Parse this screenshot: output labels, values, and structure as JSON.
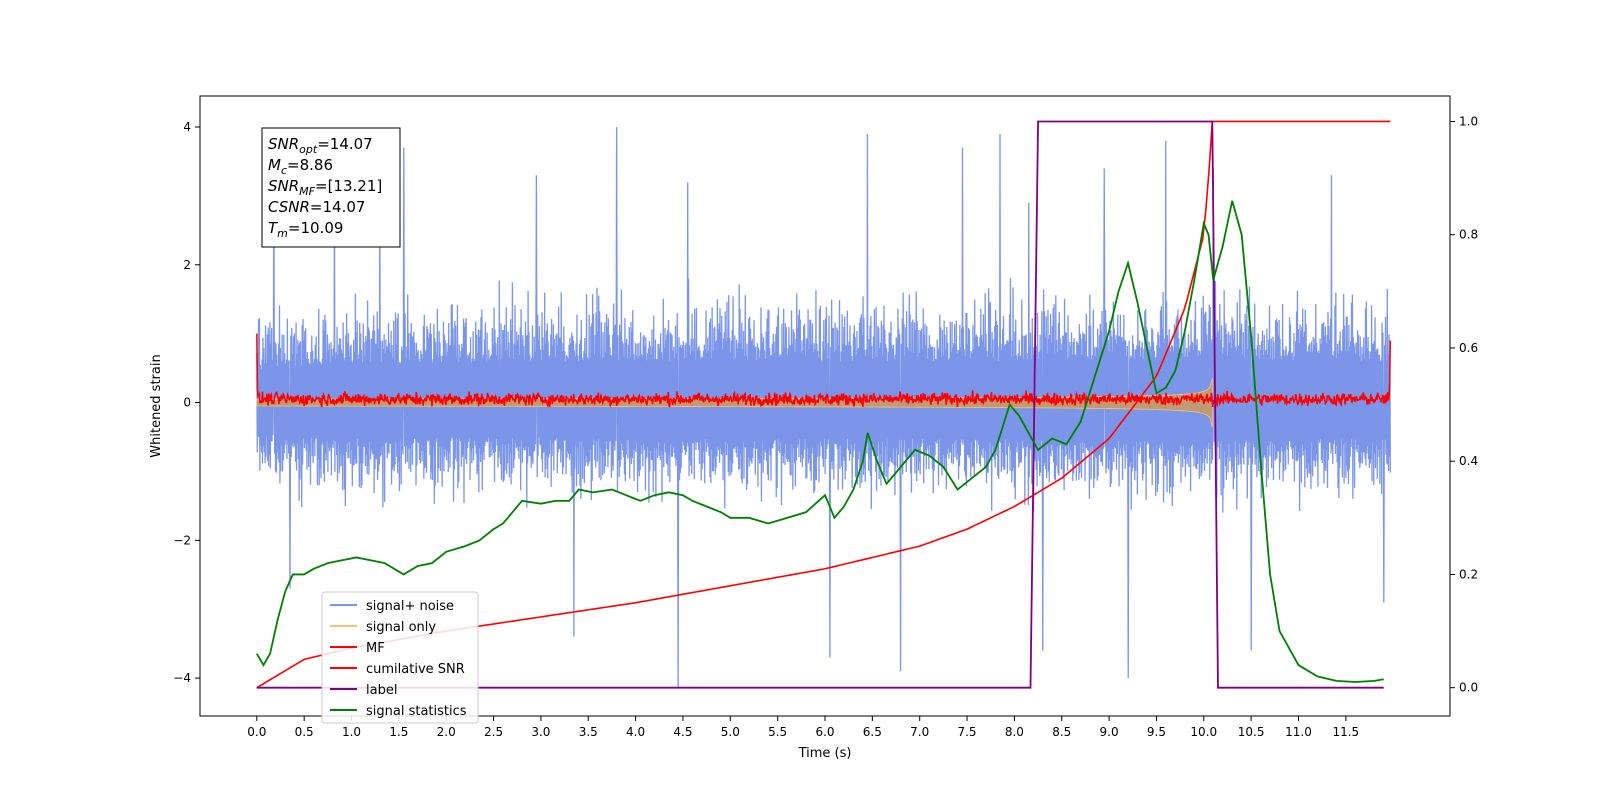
{
  "chart_data": {
    "type": "line",
    "title": "",
    "xlabel": "Time (s)",
    "ylabel": "Whitened strain",
    "xlim": [
      -0.6,
      12.6
    ],
    "ylim": [
      -4.55,
      4.45
    ],
    "y2lim": [
      -0.05,
      1.045
    ],
    "xticks": [
      0.0,
      0.5,
      1.0,
      1.5,
      2.0,
      2.5,
      3.0,
      3.5,
      4.0,
      4.5,
      5.0,
      5.5,
      6.0,
      6.5,
      7.0,
      7.5,
      8.0,
      8.5,
      9.0,
      9.5,
      10.0,
      10.5,
      11.0,
      11.5
    ],
    "xtick_labels": [
      "0.0",
      "0.5",
      "1.0",
      "1.5",
      "2.0",
      "2.5",
      "3.0",
      "3.5",
      "4.0",
      "4.5",
      "5.0",
      "5.5",
      "6.0",
      "6.5",
      "7.0",
      "7.5",
      "8.0",
      "8.5",
      "9.0",
      "9.5",
      "10.0",
      "10.5",
      "11.0",
      "11.5"
    ],
    "yticks": [
      -4,
      -2,
      0,
      2,
      4
    ],
    "ytick_labels": [
      "−4",
      "−2",
      "0",
      "2",
      "4"
    ],
    "y2ticks": [
      0.0,
      0.2,
      0.4,
      0.6,
      0.8,
      1.0
    ],
    "y2tick_labels": [
      "0.0",
      "0.2",
      "0.4",
      "0.6",
      "0.8",
      "1.0"
    ],
    "grid": false,
    "legend_position": "lower-left",
    "legend": [
      {
        "label": "signal+ noise",
        "color": "#7b96e8"
      },
      {
        "label": "signal only",
        "color": "#f5c27a"
      },
      {
        "label": "MF",
        "color": "#ff0000"
      },
      {
        "label": "cumilative SNR",
        "color": "#ff0000"
      },
      {
        "label": "label",
        "color": "#800080"
      },
      {
        "label": "signal statistics",
        "color": "#008000"
      }
    ],
    "info_box": [
      {
        "base": "SNR",
        "sub": "opt",
        "value": "=14.07"
      },
      {
        "base": "M",
        "sub": "c",
        "value": "=8.86"
      },
      {
        "base": "SNR",
        "sub": "MF",
        "value": "=[13.21]"
      },
      {
        "base": "CSNR",
        "sub": "",
        "value": "=14.07"
      },
      {
        "base": "T",
        "sub": "m",
        "value": "=10.09"
      }
    ],
    "series": [
      {
        "name": "signal+ noise",
        "axis": "left",
        "color": "#7b96e8",
        "t_start": 0.0,
        "t_end": 11.97,
        "envelope": [
          [
            0.0,
            -1.9,
            2.0
          ],
          [
            1.0,
            -2.2,
            2.3
          ],
          [
            2.0,
            -2.1,
            2.4
          ],
          [
            3.0,
            -2.1,
            2.5
          ],
          [
            4.0,
            -2.2,
            2.5
          ],
          [
            5.0,
            -2.2,
            2.5
          ],
          [
            6.0,
            -2.2,
            2.5
          ],
          [
            7.0,
            -2.2,
            2.5
          ],
          [
            8.0,
            -2.2,
            2.5
          ],
          [
            9.0,
            -2.3,
            2.6
          ],
          [
            10.0,
            -2.3,
            2.7
          ],
          [
            11.0,
            -2.2,
            2.5
          ],
          [
            11.97,
            -2.2,
            2.5
          ]
        ],
        "peaks": [
          [
            0.18,
            3.3
          ],
          [
            0.35,
            -2.7
          ],
          [
            0.82,
            3.5
          ],
          [
            1.3,
            3.5
          ],
          [
            1.55,
            3.7
          ],
          [
            2.95,
            3.3
          ],
          [
            3.35,
            -3.4
          ],
          [
            3.8,
            4.0
          ],
          [
            4.45,
            -4.15
          ],
          [
            4.55,
            3.2
          ],
          [
            6.05,
            -3.7
          ],
          [
            6.45,
            3.9
          ],
          [
            6.8,
            -3.9
          ],
          [
            7.45,
            3.7
          ],
          [
            7.85,
            3.9
          ],
          [
            8.15,
            2.9
          ],
          [
            8.3,
            -3.6
          ],
          [
            8.95,
            3.4
          ],
          [
            9.2,
            -4.0
          ],
          [
            9.6,
            3.8
          ],
          [
            10.1,
            3.4
          ],
          [
            10.5,
            -3.6
          ],
          [
            11.35,
            3.3
          ],
          [
            11.9,
            -2.9
          ]
        ]
      },
      {
        "name": "signal only",
        "axis": "left",
        "color": "#f5c27a",
        "t_start": 0.0,
        "t_merge": 10.09,
        "amp_start": 0.05,
        "amp_peak": 1.2
      },
      {
        "name": "MF",
        "axis": "left",
        "color": "#ff0000",
        "t_start": 0.0,
        "t_end": 11.97,
        "level": 0.05,
        "noise_amp": 0.1,
        "edge_values": [
          [
            0.0,
            1.0
          ],
          [
            11.97,
            0.9
          ]
        ]
      },
      {
        "name": "cumilative SNR",
        "axis": "right",
        "color": "#ff0000",
        "points": [
          [
            0.0,
            0.0
          ],
          [
            0.5,
            0.05
          ],
          [
            1.0,
            0.07
          ],
          [
            2.0,
            0.1
          ],
          [
            3.0,
            0.125
          ],
          [
            4.0,
            0.15
          ],
          [
            5.0,
            0.18
          ],
          [
            6.0,
            0.21
          ],
          [
            7.0,
            0.25
          ],
          [
            7.5,
            0.28
          ],
          [
            8.0,
            0.32
          ],
          [
            8.5,
            0.37
          ],
          [
            9.0,
            0.44
          ],
          [
            9.5,
            0.55
          ],
          [
            9.8,
            0.67
          ],
          [
            10.0,
            0.8
          ],
          [
            10.05,
            0.9
          ],
          [
            10.09,
            1.0
          ],
          [
            11.97,
            1.0
          ]
        ]
      },
      {
        "name": "label",
        "axis": "right",
        "color": "#800080",
        "points": [
          [
            0.0,
            0.0
          ],
          [
            8.17,
            0.0
          ],
          [
            8.25,
            1.0
          ],
          [
            10.09,
            1.0
          ],
          [
            10.15,
            0.0
          ],
          [
            11.9,
            0.0
          ]
        ]
      },
      {
        "name": "signal statistics",
        "axis": "right",
        "color": "#008000",
        "points": [
          [
            0.0,
            0.06
          ],
          [
            0.07,
            0.04
          ],
          [
            0.14,
            0.06
          ],
          [
            0.22,
            0.12
          ],
          [
            0.3,
            0.17
          ],
          [
            0.38,
            0.2
          ],
          [
            0.5,
            0.2
          ],
          [
            0.6,
            0.21
          ],
          [
            0.75,
            0.22
          ],
          [
            0.9,
            0.225
          ],
          [
            1.05,
            0.23
          ],
          [
            1.2,
            0.225
          ],
          [
            1.35,
            0.22
          ],
          [
            1.55,
            0.2
          ],
          [
            1.7,
            0.215
          ],
          [
            1.85,
            0.22
          ],
          [
            2.0,
            0.24
          ],
          [
            2.2,
            0.25
          ],
          [
            2.35,
            0.26
          ],
          [
            2.5,
            0.28
          ],
          [
            2.6,
            0.29
          ],
          [
            2.7,
            0.31
          ],
          [
            2.8,
            0.33
          ],
          [
            3.0,
            0.325
          ],
          [
            3.15,
            0.33
          ],
          [
            3.3,
            0.33
          ],
          [
            3.4,
            0.35
          ],
          [
            3.55,
            0.345
          ],
          [
            3.75,
            0.35
          ],
          [
            3.9,
            0.34
          ],
          [
            4.05,
            0.33
          ],
          [
            4.2,
            0.34
          ],
          [
            4.35,
            0.345
          ],
          [
            4.5,
            0.34
          ],
          [
            4.6,
            0.33
          ],
          [
            4.75,
            0.32
          ],
          [
            4.9,
            0.31
          ],
          [
            5.0,
            0.3
          ],
          [
            5.2,
            0.3
          ],
          [
            5.4,
            0.29
          ],
          [
            5.6,
            0.3
          ],
          [
            5.8,
            0.31
          ],
          [
            6.0,
            0.34
          ],
          [
            6.1,
            0.3
          ],
          [
            6.2,
            0.32
          ],
          [
            6.3,
            0.35
          ],
          [
            6.4,
            0.4
          ],
          [
            6.45,
            0.45
          ],
          [
            6.55,
            0.4
          ],
          [
            6.65,
            0.36
          ],
          [
            6.8,
            0.39
          ],
          [
            6.95,
            0.42
          ],
          [
            7.1,
            0.41
          ],
          [
            7.25,
            0.39
          ],
          [
            7.4,
            0.35
          ],
          [
            7.55,
            0.37
          ],
          [
            7.7,
            0.39
          ],
          [
            7.8,
            0.42
          ],
          [
            7.95,
            0.5
          ],
          [
            8.05,
            0.48
          ],
          [
            8.15,
            0.45
          ],
          [
            8.25,
            0.42
          ],
          [
            8.4,
            0.44
          ],
          [
            8.55,
            0.43
          ],
          [
            8.7,
            0.47
          ],
          [
            8.85,
            0.55
          ],
          [
            9.0,
            0.63
          ],
          [
            9.1,
            0.7
          ],
          [
            9.2,
            0.75
          ],
          [
            9.3,
            0.68
          ],
          [
            9.4,
            0.6
          ],
          [
            9.5,
            0.52
          ],
          [
            9.6,
            0.53
          ],
          [
            9.7,
            0.56
          ],
          [
            9.8,
            0.63
          ],
          [
            9.9,
            0.72
          ],
          [
            10.0,
            0.82
          ],
          [
            10.05,
            0.8
          ],
          [
            10.1,
            0.72
          ],
          [
            10.2,
            0.78
          ],
          [
            10.3,
            0.86
          ],
          [
            10.4,
            0.8
          ],
          [
            10.5,
            0.62
          ],
          [
            10.6,
            0.4
          ],
          [
            10.7,
            0.2
          ],
          [
            10.8,
            0.1
          ],
          [
            10.9,
            0.07
          ],
          [
            11.0,
            0.04
          ],
          [
            11.2,
            0.02
          ],
          [
            11.4,
            0.012
          ],
          [
            11.6,
            0.01
          ],
          [
            11.8,
            0.012
          ],
          [
            11.9,
            0.015
          ]
        ]
      }
    ]
  }
}
